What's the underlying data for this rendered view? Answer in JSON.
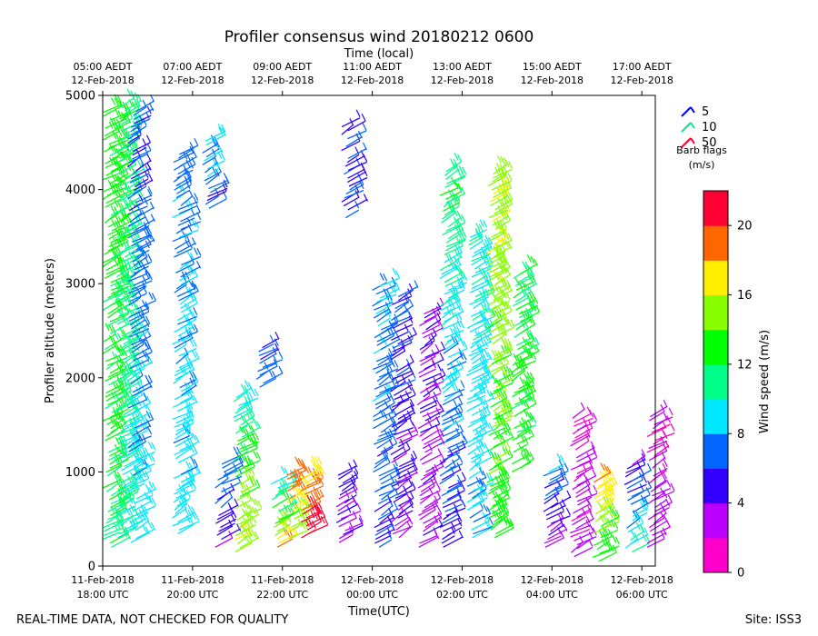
{
  "chart_data": {
    "type": "barb-time-height",
    "title": "Profiler consensus wind 20180212 0600",
    "top_axis_label": "Time (local)",
    "top_ticks": [
      {
        "t": 5,
        "l1": "05:00 AEDT",
        "l2": "12-Feb-2018"
      },
      {
        "t": 7,
        "l1": "07:00 AEDT",
        "l2": "12-Feb-2018"
      },
      {
        "t": 9,
        "l1": "09:00 AEDT",
        "l2": "12-Feb-2018"
      },
      {
        "t": 11,
        "l1": "11:00 AEDT",
        "l2": "12-Feb-2018"
      },
      {
        "t": 13,
        "l1": "13:00 AEDT",
        "l2": "12-Feb-2018"
      },
      {
        "t": 15,
        "l1": "15:00 AEDT",
        "l2": "12-Feb-2018"
      },
      {
        "t": 17,
        "l1": "17:00 AEDT",
        "l2": "12-Feb-2018"
      }
    ],
    "xlabel": "Time(UTC)",
    "bottom_ticks": [
      {
        "t": 18,
        "l1": "11-Feb-2018",
        "l2": "18:00 UTC"
      },
      {
        "t": 20,
        "l1": "11-Feb-2018",
        "l2": "20:00 UTC"
      },
      {
        "t": 22,
        "l1": "11-Feb-2018",
        "l2": "22:00 UTC"
      },
      {
        "t": 24,
        "l1": "12-Feb-2018",
        "l2": "00:00 UTC"
      },
      {
        "t": 26,
        "l1": "12-Feb-2018",
        "l2": "02:00 UTC"
      },
      {
        "t": 28,
        "l1": "12-Feb-2018",
        "l2": "04:00 UTC"
      },
      {
        "t": 30,
        "l1": "12-Feb-2018",
        "l2": "06:00 UTC"
      }
    ],
    "xlim_utc_hours": [
      18,
      30.3
    ],
    "ylabel": "Profiler altitude (meters)",
    "ylim": [
      0,
      5000
    ],
    "yticks": [
      0,
      1000,
      2000,
      3000,
      4000,
      5000
    ],
    "legend": {
      "title_line1": "Barb flags",
      "title_line2": "(m/s)",
      "entries": [
        {
          "label": "5",
          "color": "#0000ee"
        },
        {
          "label": "10",
          "color": "#00ee88"
        },
        {
          "label": "50",
          "color": "#ff0033"
        }
      ]
    },
    "colorbar": {
      "label": "Wind speed (m/s)",
      "ticks": [
        0,
        4,
        8,
        12,
        16,
        20
      ],
      "range": [
        0,
        22
      ],
      "colors": [
        "#ff00cc",
        "#bb00ff",
        "#3300ff",
        "#0066ff",
        "#00e8ff",
        "#00ff88",
        "#00ff00",
        "#88ff00",
        "#ffee00",
        "#ff6600",
        "#ff0033"
      ]
    },
    "columns": [
      {
        "t": 18.1,
        "y0": 200,
        "y1": 4900,
        "s0": 12,
        "s1": 13,
        "seed": 1
      },
      {
        "t": 18.4,
        "y0": 300,
        "y1": 4900,
        "s0": 10,
        "s1": 12,
        "seed": 2
      },
      {
        "t": 18.65,
        "y0": 250,
        "y1": 4900,
        "s0": 9,
        "s1": 6,
        "seed": 3
      },
      {
        "t": 19.65,
        "y0": 300,
        "y1": 4400,
        "s0": 9,
        "s1": 7,
        "seed": 4
      },
      {
        "t": 20.3,
        "y0": 3800,
        "y1": 4550,
        "s0": 6,
        "s1": 9,
        "seed": 5
      },
      {
        "t": 20.6,
        "y0": 200,
        "y1": 1100,
        "s0": 4,
        "s1": 7,
        "seed": 6
      },
      {
        "t": 21.0,
        "y0": 150,
        "y1": 1800,
        "s0": 16,
        "s1": 10,
        "seed": 7
      },
      {
        "t": 21.5,
        "y0": 1900,
        "y1": 2400,
        "s0": 7,
        "s1": 6,
        "seed": 8
      },
      {
        "t": 21.85,
        "y0": 200,
        "y1": 900,
        "s0": 18,
        "s1": 8,
        "seed": 9
      },
      {
        "t": 22.2,
        "y0": 250,
        "y1": 1000,
        "s0": 14,
        "s1": 20,
        "seed": 10
      },
      {
        "t": 22.5,
        "y0": 300,
        "y1": 1000,
        "s0": 21,
        "s1": 17,
        "seed": 11
      },
      {
        "t": 23.3,
        "y0": 250,
        "y1": 1000,
        "s0": 3,
        "s1": 5,
        "seed": 12
      },
      {
        "t": 23.4,
        "y0": 3700,
        "y1": 4700,
        "s0": 6,
        "s1": 6,
        "seed": 13
      },
      {
        "t": 24.1,
        "y0": 200,
        "y1": 3000,
        "s0": 6,
        "s1": 8,
        "seed": 14
      },
      {
        "t": 24.5,
        "y0": 300,
        "y1": 2900,
        "s0": 4,
        "s1": 6,
        "seed": 15
      },
      {
        "t": 25.1,
        "y0": 200,
        "y1": 2700,
        "s0": 3,
        "s1": 4,
        "seed": 16
      },
      {
        "t": 25.6,
        "y0": 200,
        "y1": 4200,
        "s0": 5,
        "s1": 12,
        "seed": 17
      },
      {
        "t": 26.2,
        "y0": 300,
        "y1": 3500,
        "s0": 8,
        "s1": 10,
        "seed": 18
      },
      {
        "t": 26.65,
        "y0": 300,
        "y1": 4200,
        "s0": 13,
        "s1": 16,
        "seed": 19
      },
      {
        "t": 27.2,
        "y0": 1000,
        "y1": 3100,
        "s0": 13,
        "s1": 12,
        "seed": 20
      },
      {
        "t": 27.9,
        "y0": 200,
        "y1": 1000,
        "s0": 3,
        "s1": 8,
        "seed": 21
      },
      {
        "t": 28.5,
        "y0": 100,
        "y1": 1600,
        "s0": 3,
        "s1": 2,
        "seed": 22
      },
      {
        "t": 29.0,
        "y0": 50,
        "y1": 900,
        "s0": 12,
        "s1": 18,
        "seed": 23
      },
      {
        "t": 29.7,
        "y0": 150,
        "y1": 1100,
        "s0": 10,
        "s1": 4,
        "seed": 24
      },
      {
        "t": 30.2,
        "y0": 200,
        "y1": 1600,
        "s0": 3,
        "s1": 2,
        "seed": 25
      }
    ]
  },
  "footer": {
    "left": "REAL-TIME DATA, NOT CHECKED FOR QUALITY",
    "right": "Site: ISS3"
  }
}
